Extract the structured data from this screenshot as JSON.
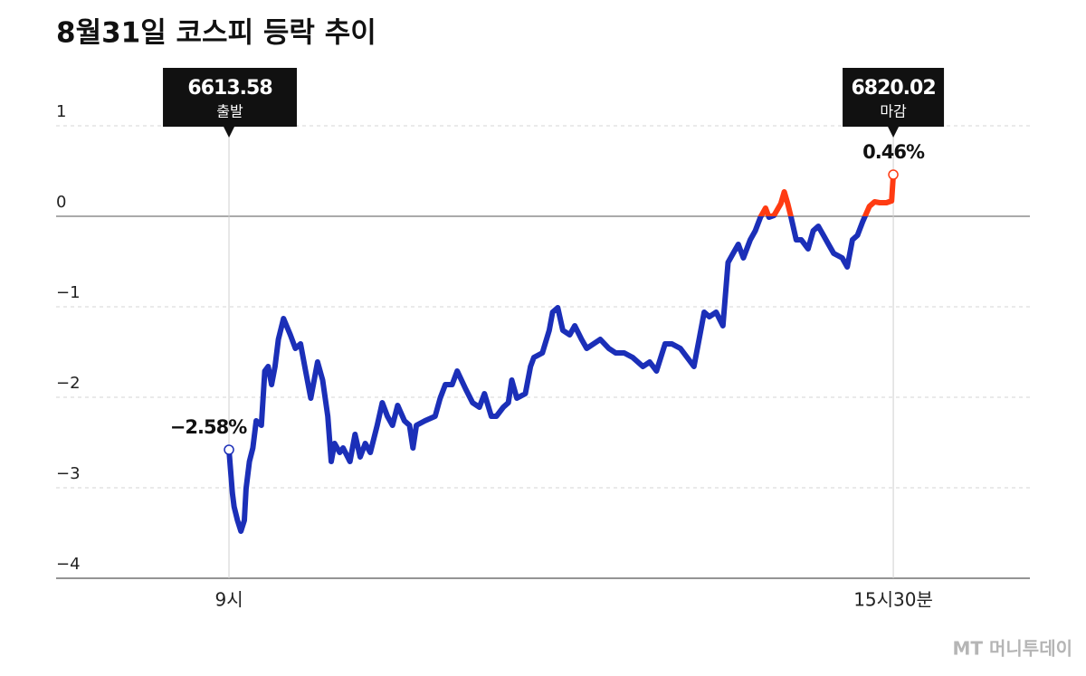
{
  "chart_data": {
    "type": "line",
    "title": "8월31일 코스피 등락 추이",
    "xlim": [
      -101.5,
      470.2
    ],
    "xticks": [
      {
        "value": 0,
        "label": "9시"
      },
      {
        "value": 390,
        "label": "15시30분"
      }
    ],
    "ylim": [
      -4,
      1.5
    ],
    "yticks": [
      {
        "value": -4,
        "label": "−4"
      },
      {
        "value": -3,
        "label": "−3"
      },
      {
        "value": -2,
        "label": "−2"
      },
      {
        "value": -1,
        "label": "−1"
      },
      0,
      1
    ],
    "grid": true,
    "series": [
      {
        "color": "#1b2fb8",
        "positive_color": "#ff3b12",
        "x": [
          0,
          2,
          3,
          5,
          7,
          9,
          10,
          12,
          14,
          16,
          19,
          21,
          23,
          25,
          27,
          29,
          32,
          36,
          39,
          42,
          45,
          48,
          52,
          55,
          58,
          60,
          62,
          65,
          67,
          71,
          74,
          77,
          80,
          83,
          87,
          90,
          93,
          96,
          99,
          103,
          106,
          108,
          110,
          115,
          121,
          124,
          127,
          131,
          134,
          139,
          143,
          147,
          150,
          154,
          157,
          161,
          164,
          166,
          169,
          174,
          177,
          179,
          184,
          188,
          190,
          193,
          196,
          200,
          203,
          207,
          210,
          214,
          218,
          223,
          227,
          232,
          237,
          243,
          247,
          251,
          256,
          260,
          265,
          269,
          273,
          276,
          279,
          282,
          286,
          290,
          293,
          296,
          299,
          302,
          306,
          309,
          312,
          315,
          317,
          320,
          324,
          326,
          328,
          330,
          333,
          336,
          340,
          343,
          346,
          349,
          352,
          355,
          360,
          363,
          366,
          369,
          372,
          376,
          379,
          382,
          386,
          389,
          390
        ],
        "values": [
          -2.58,
          -3.06,
          -3.21,
          -3.36,
          -3.48,
          -3.36,
          -3.01,
          -2.71,
          -2.56,
          -2.26,
          -2.31,
          -1.71,
          -1.66,
          -1.86,
          -1.66,
          -1.36,
          -1.13,
          -1.31,
          -1.46,
          -1.41,
          -1.71,
          -2.01,
          -1.61,
          -1.81,
          -2.21,
          -2.71,
          -2.51,
          -2.61,
          -2.56,
          -2.71,
          -2.41,
          -2.66,
          -2.51,
          -2.61,
          -2.31,
          -2.06,
          -2.21,
          -2.31,
          -2.09,
          -2.26,
          -2.31,
          -2.56,
          -2.31,
          -2.26,
          -2.21,
          -2.01,
          -1.86,
          -1.86,
          -1.71,
          -1.91,
          -2.06,
          -2.11,
          -1.96,
          -2.21,
          -2.21,
          -2.11,
          -2.06,
          -1.81,
          -2.01,
          -1.96,
          -1.66,
          -1.56,
          -1.51,
          -1.26,
          -1.06,
          -1.01,
          -1.26,
          -1.31,
          -1.21,
          -1.36,
          -1.46,
          -1.41,
          -1.36,
          -1.46,
          -1.51,
          -1.51,
          -1.56,
          -1.66,
          -1.61,
          -1.71,
          -1.41,
          -1.41,
          -1.46,
          -1.56,
          -1.66,
          -1.36,
          -1.06,
          -1.11,
          -1.06,
          -1.21,
          -0.51,
          -0.41,
          -0.31,
          -0.46,
          -0.26,
          -0.16,
          -0.01,
          0.09,
          -0.01,
          0.01,
          0.14,
          0.27,
          0.14,
          -0.01,
          -0.26,
          -0.26,
          -0.36,
          -0.16,
          -0.11,
          -0.21,
          -0.31,
          -0.41,
          -0.46,
          -0.56,
          -0.26,
          -0.21,
          -0.06,
          0.11,
          0.16,
          0.15,
          0.15,
          0.17,
          0.46
        ]
      }
    ],
    "annotations": {
      "start": {
        "price": 6613.58,
        "label": "출발",
        "change": "−2.58%"
      },
      "end": {
        "price": 6820.02,
        "label": "마감",
        "change": "0.46%"
      }
    },
    "source": "MT 머니투데이"
  }
}
